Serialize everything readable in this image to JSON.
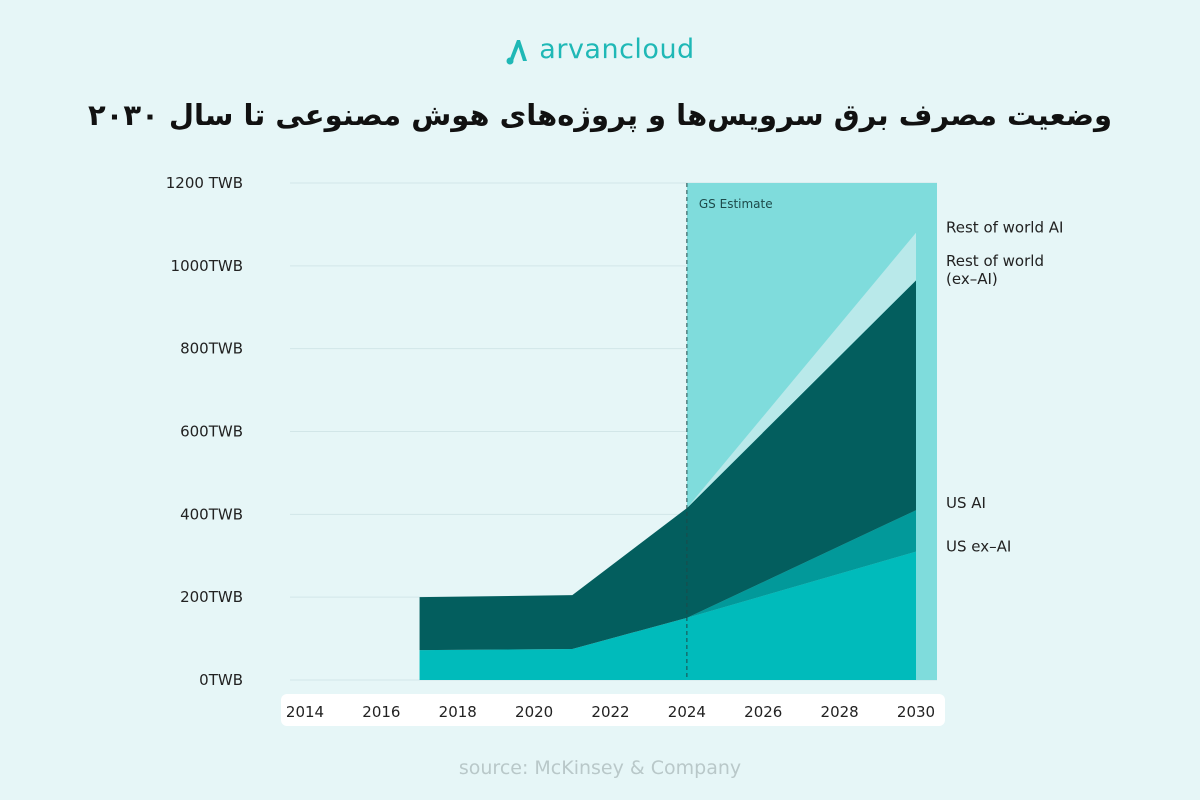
{
  "brand": {
    "name": "arvancloud",
    "accent": "#1fb8b6"
  },
  "title": "وضعیت مصرف برق سرویس‌ها و پروژه‌های هوش مصنوعی  تا سال ۲۰۳۰",
  "source": "source: McKinsey & Company",
  "chart_data": {
    "type": "area",
    "stacked": true,
    "x_ticks": [
      "2014",
      "2016",
      "2018",
      "2020",
      "2022",
      "2024",
      "2026",
      "2028",
      "2030"
    ],
    "y_ticks": [
      "0TWB",
      "200TWB",
      "400TWB",
      "600TWB",
      "800TWB",
      "1000TWB",
      "1200 TWB"
    ],
    "ylim": [
      0,
      1200
    ],
    "xlim": [
      2014,
      2030
    ],
    "grid": true,
    "annotation": {
      "x": 2024,
      "text": "GS Estimate"
    },
    "colors": {
      "US ex–AI": "#00bbbb",
      "US AI": "#02999a",
      "Rest of world (ex–AI)": "#035e5e",
      "Rest of world AI": "#b9e9ea",
      "estimate_background": "#7fdcdc"
    },
    "x": [
      2017,
      2021,
      2024,
      2030
    ],
    "series": [
      {
        "name": "US ex–AI",
        "values": [
          72,
          75,
          150,
          310
        ]
      },
      {
        "name": "US AI",
        "values": [
          0,
          0,
          0,
          100
        ]
      },
      {
        "name": "Rest of world (ex–AI)",
        "values": [
          128,
          130,
          265,
          555
        ]
      },
      {
        "name": "Rest of world AI",
        "values": [
          0,
          0,
          0,
          115
        ]
      }
    ],
    "series_labels": [
      {
        "series": "Rest of world AI",
        "lines": [
          "Rest of world AI"
        ]
      },
      {
        "series": "Rest of world (ex–AI)",
        "lines": [
          "Rest of world",
          "(ex–AI)"
        ]
      },
      {
        "series": "US AI",
        "lines": [
          "US AI"
        ]
      },
      {
        "series": "US ex–AI",
        "lines": [
          "US ex–AI"
        ]
      }
    ]
  }
}
